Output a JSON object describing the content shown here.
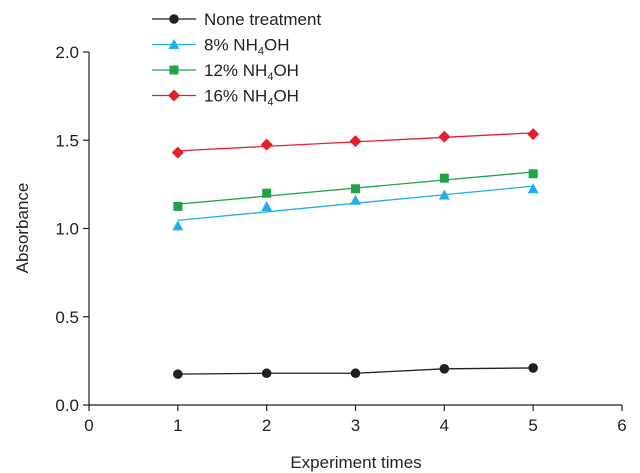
{
  "chart_data": {
    "type": "scatter",
    "title": "",
    "xlabel": "Experiment times",
    "ylabel": "Absorbance",
    "xlim": [
      0,
      6
    ],
    "ylim": [
      0,
      2.0
    ],
    "x_ticks": [
      0,
      1,
      2,
      3,
      4,
      5,
      6
    ],
    "y_ticks": [
      0.0,
      0.5,
      1.0,
      1.5,
      2.0
    ],
    "x_tick_labels": [
      "0",
      "1",
      "2",
      "3",
      "4",
      "5",
      "6"
    ],
    "y_tick_labels": [
      "0.0",
      "0.5",
      "1.0",
      "1.5",
      "2.0"
    ],
    "grid": false,
    "legend_position": "top-left",
    "series": [
      {
        "name": "None treatment",
        "legend_prefix": "None treatment",
        "legend_sub": "",
        "legend_suffix": "",
        "marker": "circle",
        "color": "#231f20",
        "trendline": "connected",
        "x": [
          1,
          2,
          3,
          4,
          5
        ],
        "y": [
          0.175,
          0.18,
          0.18,
          0.205,
          0.21
        ]
      },
      {
        "name": "8% NH4OH",
        "legend_prefix": "8% NH",
        "legend_sub": "4",
        "legend_suffix": "OH",
        "marker": "triangle",
        "color": "#22aee6",
        "trendline": "linear",
        "x": [
          1,
          2,
          3,
          4,
          5
        ],
        "y": [
          1.015,
          1.125,
          1.16,
          1.19,
          1.225
        ]
      },
      {
        "name": "12% NH4OH",
        "legend_prefix": "12% NH",
        "legend_sub": "4",
        "legend_suffix": "OH",
        "marker": "square",
        "color": "#1fa24a",
        "trendline": "linear",
        "x": [
          1,
          2,
          3,
          4,
          5
        ],
        "y": [
          1.125,
          1.2,
          1.225,
          1.285,
          1.31
        ]
      },
      {
        "name": "16% NH4OH",
        "legend_prefix": "16% NH",
        "legend_sub": "4",
        "legend_suffix": "OH",
        "marker": "diamond",
        "color": "#e5202e",
        "trendline": "linear",
        "x": [
          1,
          2,
          3,
          4,
          5
        ],
        "y": [
          1.43,
          1.475,
          1.495,
          1.52,
          1.535
        ]
      }
    ]
  }
}
